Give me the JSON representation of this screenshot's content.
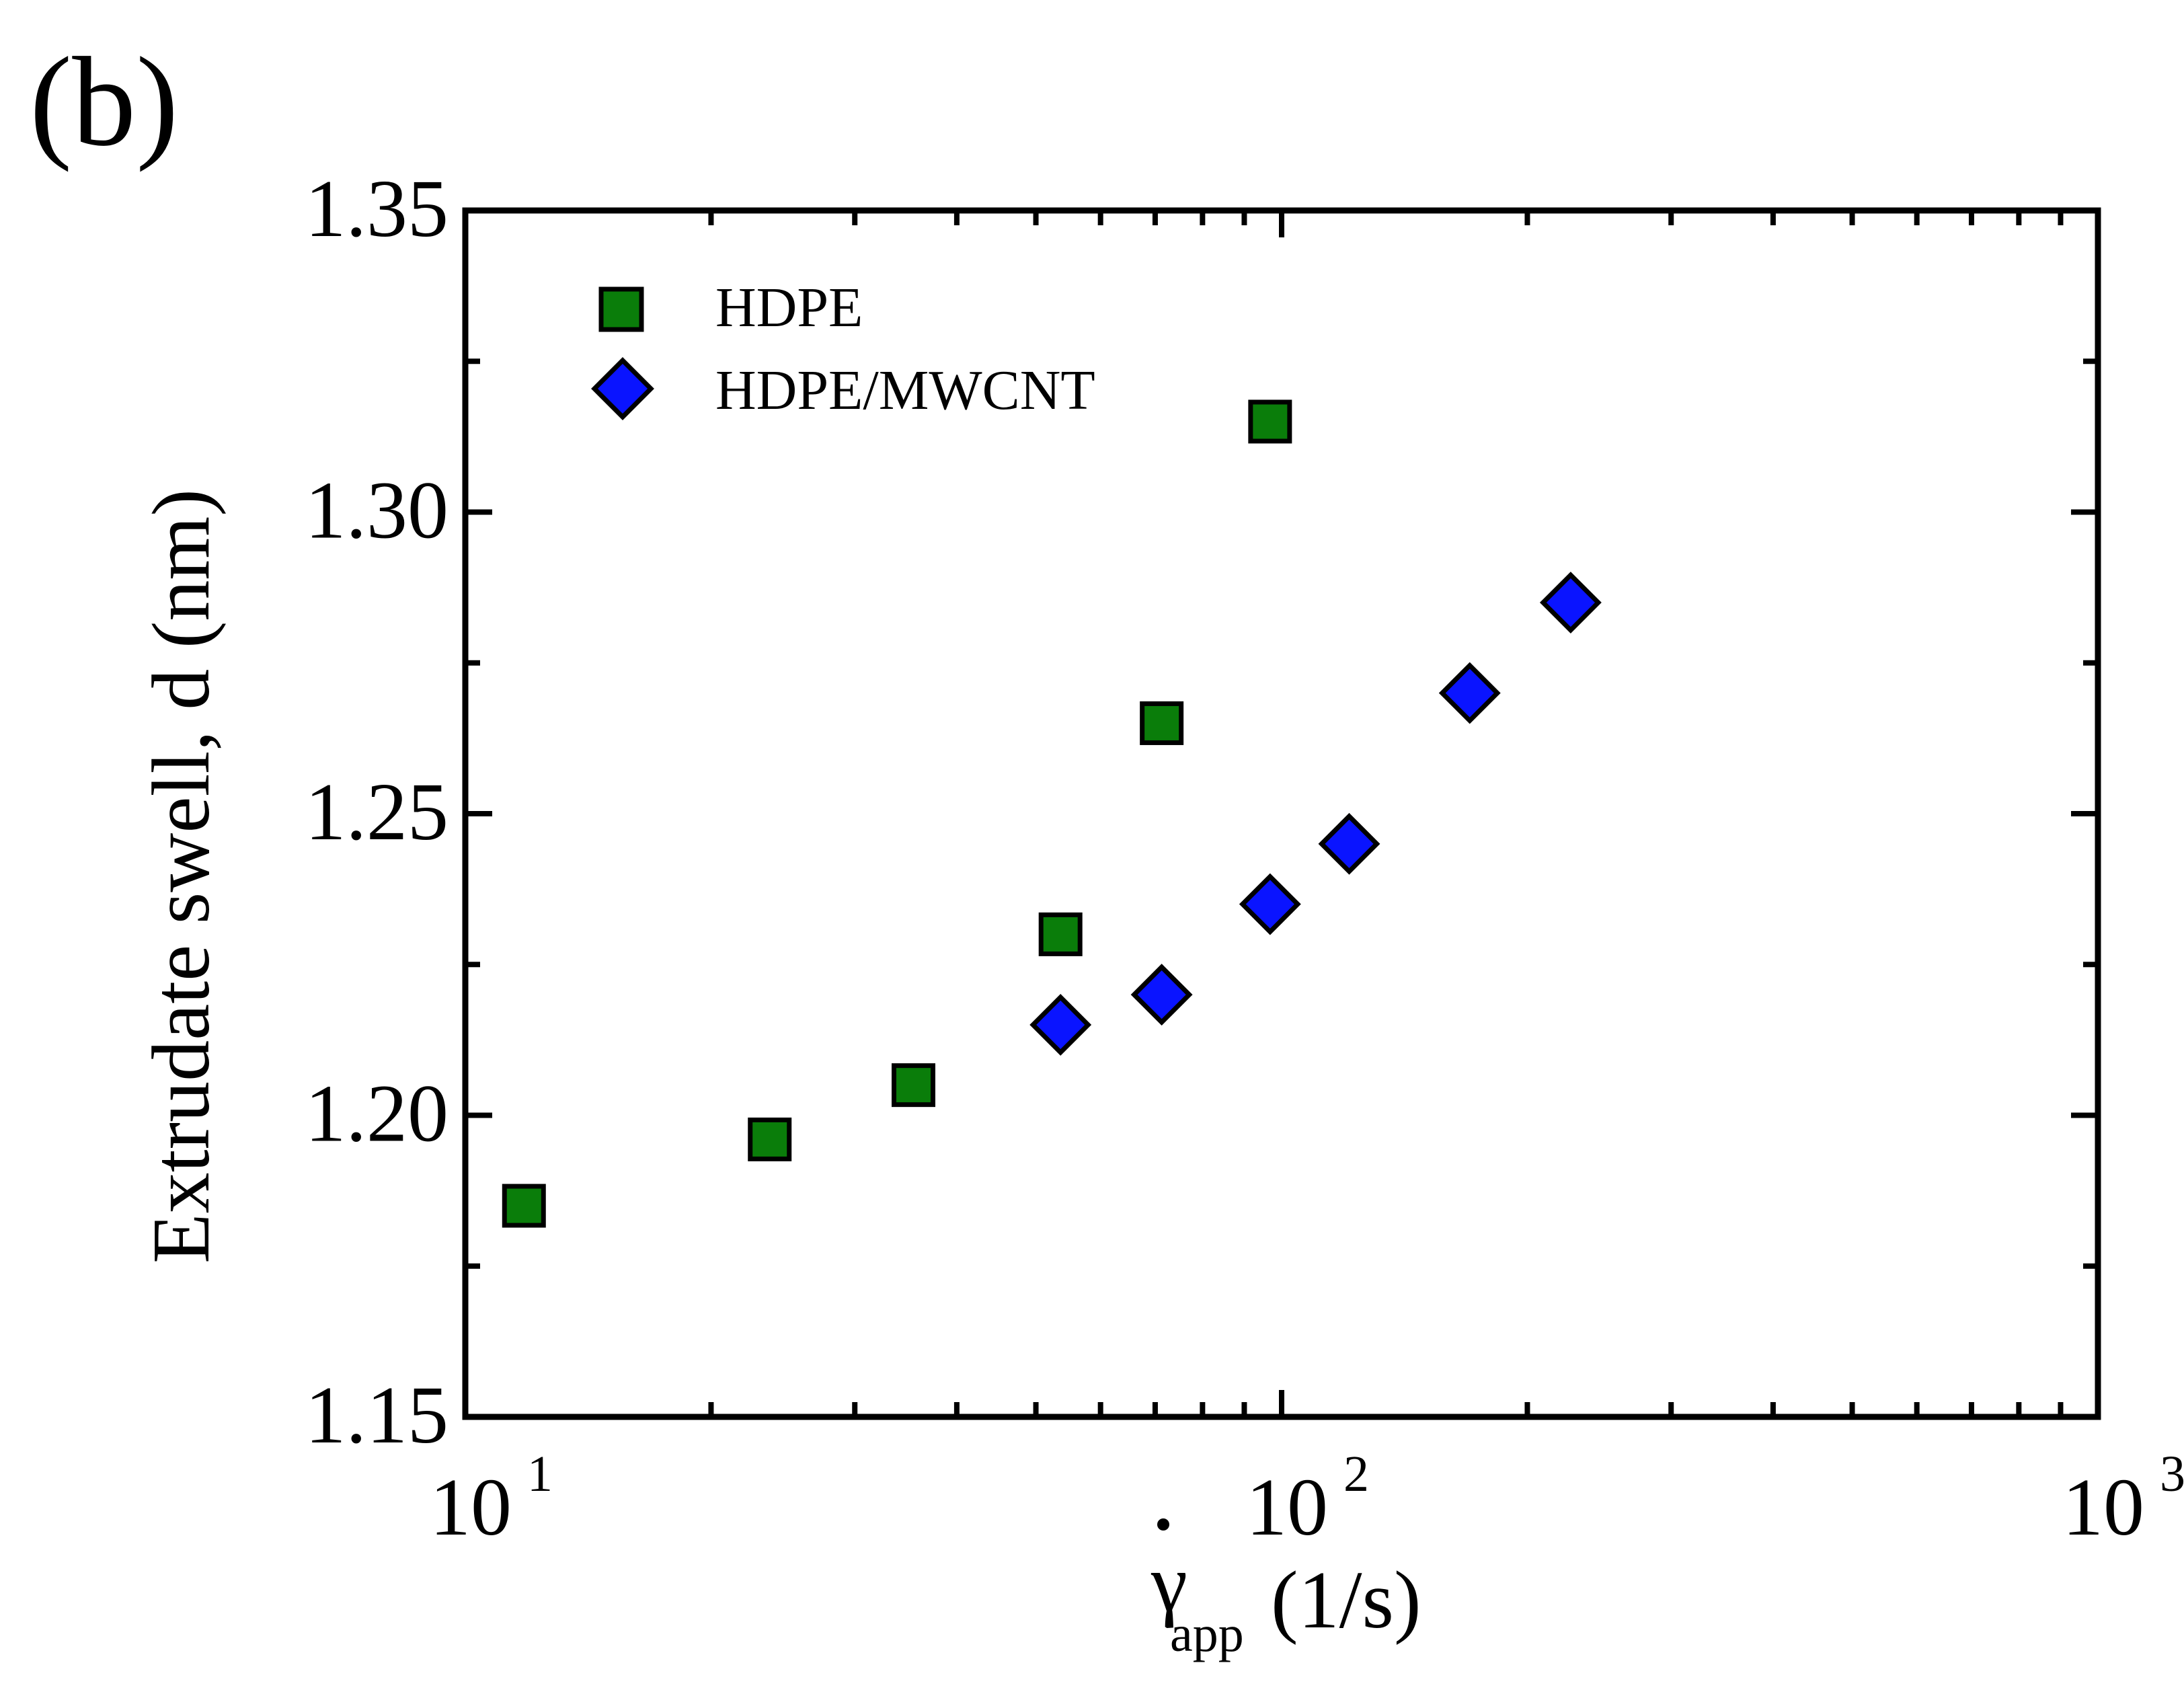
{
  "panel_label": "(b)",
  "colors": {
    "hdpe_fill": "#0a7d0a",
    "mwcnt_fill": "#0a14ff",
    "axis": "#000000"
  },
  "chart_data": {
    "type": "scatter",
    "xscale": "log",
    "xlim": [
      10,
      1000
    ],
    "ylim": [
      1.15,
      1.35
    ],
    "x_ticks": [
      {
        "value": 10,
        "base": "10",
        "exp": "1"
      },
      {
        "value": 100,
        "base": "10",
        "exp": "2"
      },
      {
        "value": 1000,
        "base": "10",
        "exp": "3"
      }
    ],
    "y_ticks": [
      "1.15",
      "1.20",
      "1.25",
      "1.30",
      "1.35"
    ],
    "y_minor_ticks": [
      1.175,
      1.225,
      1.275,
      1.325
    ],
    "xlabel": {
      "symbol": "γ",
      "subscript": "app",
      "unit": "(1/s)"
    },
    "ylabel": "Extrudate swell, d (nm)",
    "legend_position": "top-left",
    "grid": false,
    "series": [
      {
        "name": "HDPE",
        "marker": "square",
        "points": [
          {
            "x": 11.8,
            "y": 1.185
          },
          {
            "x": 23.6,
            "y": 1.196
          },
          {
            "x": 35.4,
            "y": 1.205
          },
          {
            "x": 53.6,
            "y": 1.23
          },
          {
            "x": 71.3,
            "y": 1.265
          },
          {
            "x": 96.8,
            "y": 1.315
          }
        ]
      },
      {
        "name": "HDPE/MWCNT",
        "marker": "diamond",
        "points": [
          {
            "x": 53.6,
            "y": 1.215
          },
          {
            "x": 71.3,
            "y": 1.22
          },
          {
            "x": 96.8,
            "y": 1.235
          },
          {
            "x": 121,
            "y": 1.245
          },
          {
            "x": 170,
            "y": 1.27
          },
          {
            "x": 226,
            "y": 1.285
          }
        ]
      }
    ]
  }
}
